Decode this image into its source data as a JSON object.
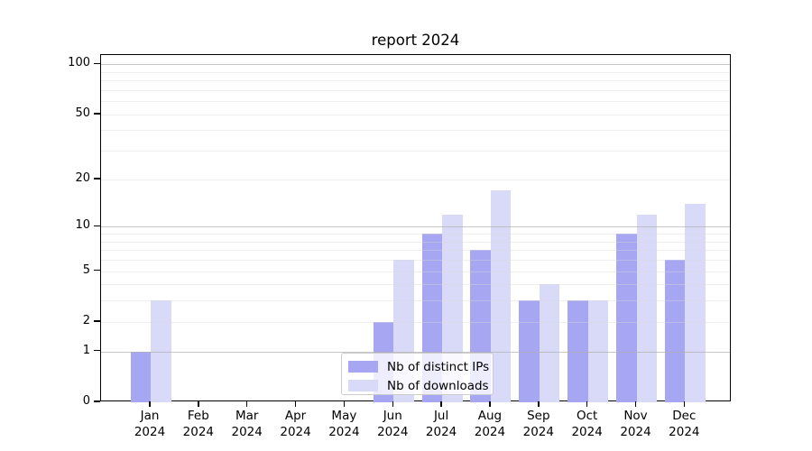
{
  "title": "report 2024",
  "chart_data": {
    "type": "bar",
    "title": "report 2024",
    "categories": [
      "Jan 2024",
      "Feb 2024",
      "Mar 2024",
      "Apr 2024",
      "May 2024",
      "Jun 2024",
      "Jul 2024",
      "Aug 2024",
      "Sep 2024",
      "Oct 2024",
      "Nov 2024",
      "Dec 2024"
    ],
    "series": [
      {
        "name": "Nb of distinct IPs",
        "color": "#a6a6f2",
        "values": [
          1,
          0,
          0,
          0,
          0,
          2,
          9,
          7,
          3,
          3,
          9,
          6
        ]
      },
      {
        "name": "Nb of downloads",
        "color": "#d9d9f8",
        "values": [
          3,
          0,
          0,
          0,
          0,
          6,
          12,
          17,
          4,
          3,
          12,
          14
        ]
      }
    ],
    "yscale": "log1p",
    "ylim": [
      0,
      114
    ],
    "yticks": [
      0,
      1,
      2,
      5,
      10,
      20,
      50,
      100
    ],
    "ytick_labels": [
      "0",
      "1",
      "2",
      "5",
      "10",
      "20",
      "50",
      "100"
    ],
    "minor_yticks": [
      3,
      4,
      6,
      7,
      8,
      9,
      30,
      40,
      60,
      70,
      80,
      90
    ],
    "decade_yticks": [
      1,
      10,
      100
    ],
    "grid": true,
    "legend_position": "lower center"
  },
  "colors": {
    "bar_distinct_ips": "#a6a6f2",
    "bar_downloads": "#d9d9f8",
    "grid_decade": "#b0b0b0",
    "grid_minor": "#dadada",
    "axis": "#000000",
    "text": "#000000",
    "legend_border": "#cccccc",
    "legend_background": "#ffffff"
  }
}
